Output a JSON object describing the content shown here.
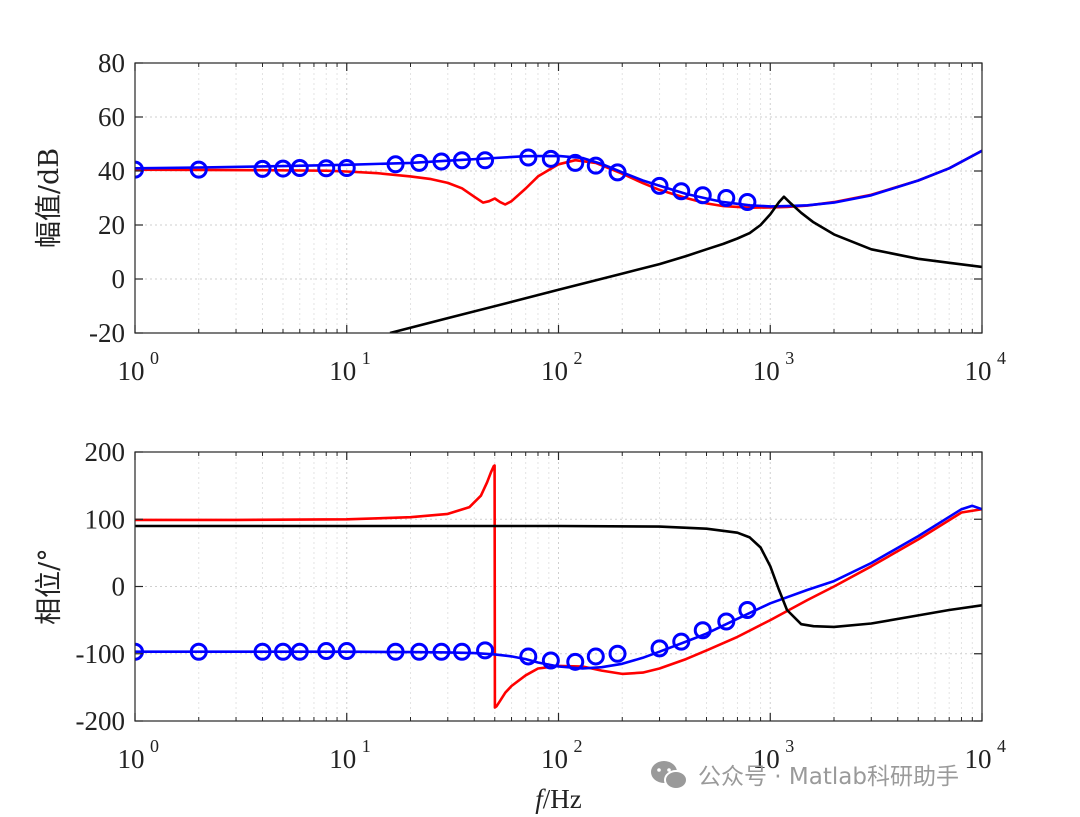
{
  "watermark": {
    "text": "公众号 · Matlab科研助手",
    "icon": "wechat-icon"
  },
  "chart_data": [
    {
      "type": "line",
      "ylabel": "幅值/dB",
      "xscale": "log",
      "xlim": [
        1,
        10000
      ],
      "ylim": [
        -20,
        80
      ],
      "yticks": [
        "80",
        "60",
        "40",
        "20",
        "0",
        "-20"
      ],
      "xticks": [
        {
          "base": "10",
          "exp": "0"
        },
        {
          "base": "10",
          "exp": "1"
        },
        {
          "base": "10",
          "exp": "2"
        },
        {
          "base": "10",
          "exp": "3"
        },
        {
          "base": "10",
          "exp": "4"
        }
      ],
      "grid": true,
      "series": [
        {
          "color": "#ff0000",
          "style": "line",
          "x": [
            1,
            2,
            4,
            6,
            8,
            10,
            14,
            20,
            25,
            30,
            35,
            40,
            44,
            47,
            50,
            53,
            56,
            60,
            70,
            80,
            100,
            120,
            150,
            200,
            250,
            300,
            400,
            500,
            600,
            800,
            1000,
            1200,
            1500,
            2000,
            3000,
            5000,
            7000,
            10000
          ],
          "y": [
            40.5,
            40.4,
            40.3,
            40.2,
            40.1,
            39.8,
            39.2,
            38,
            37,
            35.6,
            33.6,
            30.5,
            28.3,
            28.8,
            29.8,
            28.5,
            27.6,
            28.8,
            33.5,
            38,
            42.5,
            44,
            43,
            39,
            35.5,
            33,
            30,
            28,
            27,
            26.4,
            26.5,
            26.7,
            27.2,
            28.5,
            31.2,
            36.5,
            41,
            47.5
          ]
        },
        {
          "color": "#0000ff",
          "style": "line",
          "x": [
            1,
            2,
            5,
            10,
            20,
            30,
            50,
            70,
            100,
            130,
            160,
            200,
            250,
            300,
            400,
            500,
            600,
            800,
            1000,
            1200,
            1500,
            2000,
            3000,
            5000,
            7000,
            10000
          ],
          "y": [
            41,
            41.3,
            41.8,
            42.3,
            43,
            43.8,
            44.8,
            45.5,
            45.6,
            44.8,
            42.6,
            39.5,
            36.5,
            34.5,
            31.5,
            29.8,
            28.5,
            27.3,
            26.9,
            27,
            27.3,
            28.3,
            31,
            36.5,
            41,
            47.5
          ]
        },
        {
          "color": "#0000ff",
          "style": "markers",
          "x": [
            1,
            2,
            4,
            5,
            6,
            8,
            10,
            17,
            22,
            28,
            35,
            45,
            72,
            92,
            120,
            150,
            190,
            300,
            380,
            480,
            620,
            780
          ],
          "y": [
            40.5,
            40.5,
            40.8,
            40.9,
            41.1,
            41,
            41.1,
            42.5,
            43,
            43.5,
            44,
            44,
            45,
            44.5,
            43,
            42,
            39.5,
            34.5,
            32.5,
            31,
            30,
            28.5
          ]
        },
        {
          "color": "#000000",
          "style": "line",
          "x": [
            16,
            30,
            60,
            100,
            200,
            300,
            400,
            500,
            600,
            700,
            800,
            900,
            1000,
            1100,
            1160,
            1250,
            1400,
            1600,
            2000,
            3000,
            5000,
            7000,
            10000
          ],
          "y": [
            -20,
            -14.5,
            -8.5,
            -4,
            2,
            5.5,
            8.5,
            11,
            13,
            15,
            17,
            20,
            24,
            28.5,
            30.5,
            28,
            24.5,
            21,
            16.5,
            11,
            7.5,
            6,
            4.5
          ]
        }
      ]
    },
    {
      "type": "line",
      "ylabel": "相位/°",
      "xlabel": "f/Hz",
      "xscale": "log",
      "xlim": [
        1,
        10000
      ],
      "ylim": [
        -200,
        200
      ],
      "yticks": [
        "200",
        "100",
        "0",
        "-100",
        "-200"
      ],
      "xticks": [
        {
          "base": "10",
          "exp": "0"
        },
        {
          "base": "10",
          "exp": "1"
        },
        {
          "base": "10",
          "exp": "2"
        },
        {
          "base": "10",
          "exp": "3"
        },
        {
          "base": "10",
          "exp": "4"
        }
      ],
      "grid": true,
      "series": [
        {
          "color": "#ff0000",
          "style": "line",
          "x": [
            1,
            3,
            10,
            20,
            30,
            38,
            43,
            46,
            48,
            49.5,
            49.9,
            50.1,
            51,
            53,
            56,
            60,
            70,
            80,
            100,
            130,
            160,
            200,
            250,
            300,
            400,
            500,
            700,
            1000,
            1500,
            2000,
            3000,
            5000,
            8000,
            10000
          ],
          "y": [
            99,
            99,
            100,
            103,
            108,
            118,
            135,
            155,
            170,
            179,
            179.9,
            -179.9,
            -178,
            -170,
            -158,
            -148,
            -132,
            -122,
            -118,
            -119,
            -125,
            -130,
            -128,
            -122,
            -108,
            -95,
            -75,
            -50,
            -20,
            0,
            30,
            70,
            110,
            115
          ]
        },
        {
          "color": "#0000ff",
          "style": "line",
          "x": [
            1,
            5,
            10,
            20,
            30,
            40,
            50,
            60,
            70,
            80,
            100,
            130,
            160,
            200,
            250,
            300,
            400,
            500,
            700,
            1000,
            1500,
            2000,
            3000,
            5000,
            8000,
            9000,
            10000
          ],
          "y": [
            -97,
            -97,
            -97,
            -97.5,
            -98,
            -99,
            -101,
            -104,
            -108,
            -113,
            -119,
            -122,
            -120,
            -115,
            -106,
            -97,
            -82,
            -70,
            -48,
            -25,
            -5,
            8,
            35,
            75,
            115,
            120,
            115
          ]
        },
        {
          "color": "#0000ff",
          "style": "markers",
          "x": [
            1,
            2,
            4,
            5,
            6,
            8,
            10,
            17,
            22,
            28,
            35,
            45,
            72,
            92,
            120,
            150,
            190,
            300,
            380,
            480,
            620,
            780
          ],
          "y": [
            -97,
            -97,
            -97,
            -97,
            -97,
            -96,
            -96,
            -97,
            -97,
            -97,
            -97,
            -95,
            -104,
            -110,
            -112,
            -104,
            -100,
            -92,
            -82,
            -65,
            -52,
            -35
          ]
        },
        {
          "color": "#000000",
          "style": "line",
          "x": [
            1,
            10,
            100,
            300,
            500,
            700,
            800,
            900,
            1000,
            1100,
            1200,
            1400,
            1600,
            2000,
            3000,
            5000,
            7000,
            10000
          ],
          "y": [
            90,
            90,
            90,
            89,
            86,
            80,
            73,
            58,
            30,
            -5,
            -35,
            -56,
            -59,
            -60,
            -55,
            -43,
            -35,
            -28
          ]
        }
      ]
    }
  ]
}
